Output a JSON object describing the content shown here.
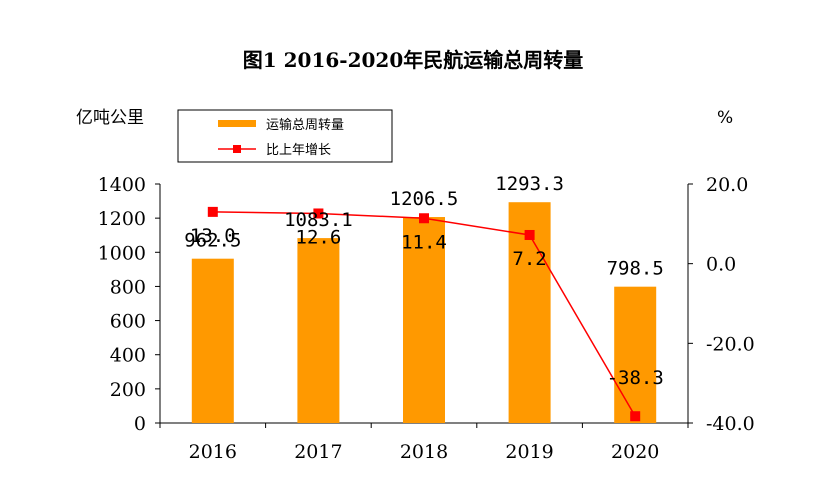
{
  "chart_data": {
    "type": "bar+line",
    "title": "图1  2016-2020年民航运输总周转量",
    "categories": [
      "2016",
      "2017",
      "2018",
      "2019",
      "2020"
    ],
    "series": [
      {
        "name": "运输总周转量",
        "type": "bar",
        "axis": "left",
        "values": [
          962.5,
          1083.1,
          1206.5,
          1293.3,
          798.5
        ],
        "labels": [
          "962.5",
          "1083.1",
          "1206.5",
          "1293.3",
          "798.5"
        ],
        "color": "#FF9900"
      },
      {
        "name": "比上年增长",
        "type": "line",
        "axis": "right",
        "values": [
          13.0,
          12.6,
          11.4,
          7.2,
          -38.3
        ],
        "labels": [
          "13.0",
          "12.6",
          "11.4",
          "7.2",
          "-38.3"
        ],
        "color": "#FF0000"
      }
    ],
    "y_left": {
      "unit": "亿吨公里",
      "ylim": [
        0,
        1400
      ],
      "ticks": [
        "0",
        "200",
        "400",
        "600",
        "800",
        "1000",
        "1200",
        "1400"
      ]
    },
    "y_right": {
      "unit": "%",
      "ylim": [
        -40,
        20
      ],
      "ticks": [
        "-40.0",
        "-20.0",
        "0.0",
        "20.0"
      ]
    },
    "legend": "top-left",
    "grid": false
  }
}
